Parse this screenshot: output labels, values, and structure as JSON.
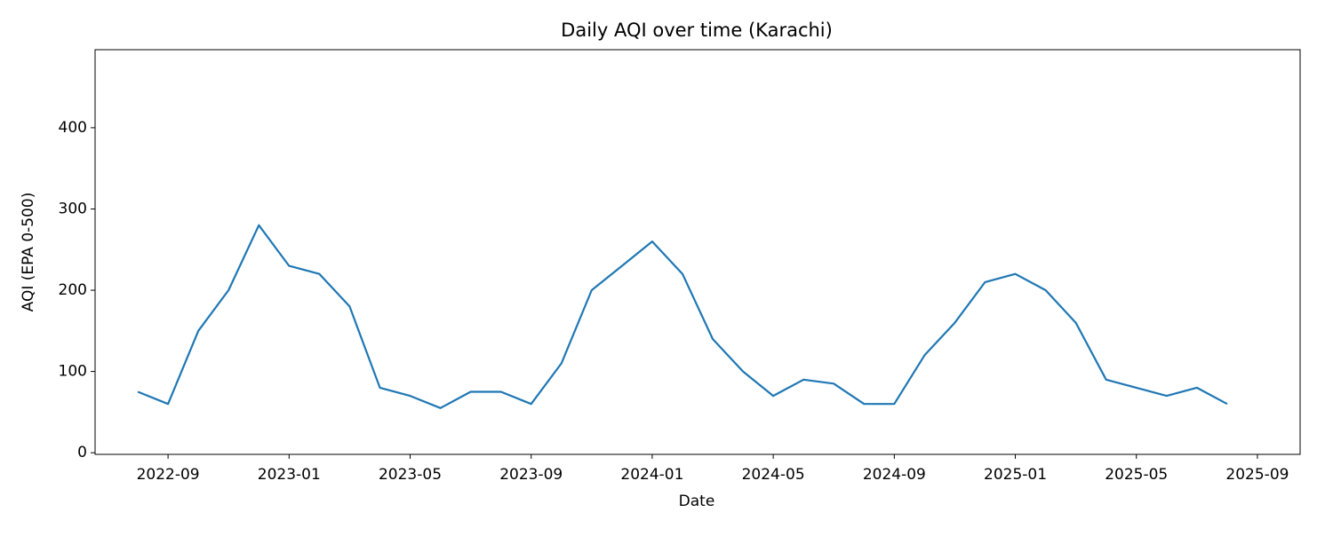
{
  "chart_data": {
    "type": "line",
    "title": "Daily AQI over time (Karachi)",
    "x_label": "Date",
    "y_label": "AQI (EPA 0-500)",
    "x": [
      "2022-08",
      "2022-09",
      "2022-10",
      "2022-11",
      "2022-12",
      "2023-01",
      "2023-02",
      "2023-03",
      "2023-04",
      "2023-05",
      "2023-06",
      "2023-07",
      "2023-08",
      "2023-09",
      "2023-10",
      "2023-11",
      "2023-12",
      "2024-01",
      "2024-02",
      "2024-03",
      "2024-04",
      "2024-05",
      "2024-06",
      "2024-07",
      "2024-08",
      "2024-09",
      "2024-10",
      "2024-11",
      "2024-12",
      "2025-01",
      "2025-02",
      "2025-03",
      "2025-04",
      "2025-05",
      "2025-06",
      "2025-07",
      "2025-08"
    ],
    "series": [
      {
        "name": "AQI",
        "color": "#1f77b4",
        "values": [
          75,
          60,
          150,
          200,
          280,
          230,
          220,
          180,
          80,
          70,
          55,
          75,
          75,
          60,
          110,
          200,
          230,
          260,
          220,
          140,
          100,
          70,
          90,
          85,
          60,
          60,
          120,
          160,
          210,
          220,
          200,
          160,
          90,
          80,
          70,
          80,
          60
        ]
      }
    ],
    "xlim": [
      "2022-07",
      "2025-10"
    ],
    "xticks": [
      "2022-09",
      "2023-01",
      "2023-05",
      "2023-09",
      "2024-01",
      "2024-05",
      "2024-09",
      "2025-01",
      "2025-05",
      "2025-09"
    ],
    "ylim": [
      -2,
      496
    ],
    "yticks": [
      0,
      100,
      200,
      300,
      400
    ],
    "grid": false
  }
}
